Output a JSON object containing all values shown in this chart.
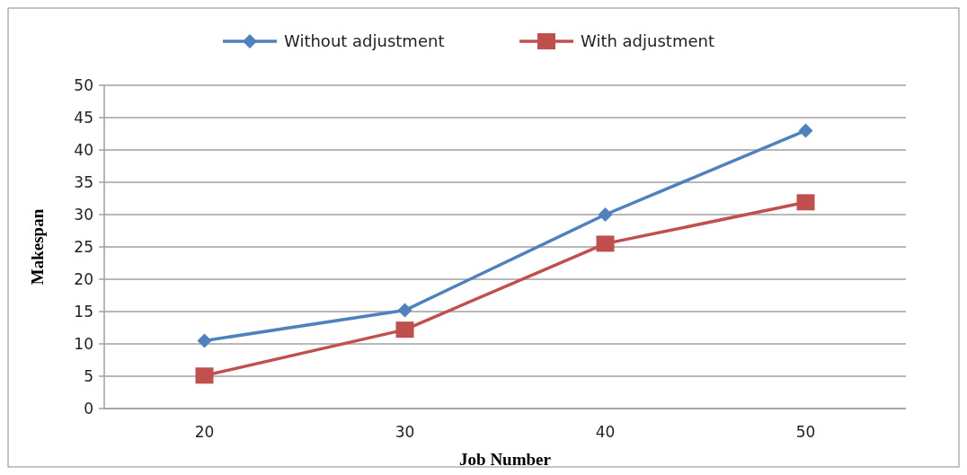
{
  "chart_data": {
    "type": "line",
    "xlabel": "Job Number",
    "ylabel": "Makespan",
    "categories": [
      "20",
      "30",
      "40",
      "50"
    ],
    "series": [
      {
        "name": "Without adjustment",
        "color": "#4f81bd",
        "marker": "diamond",
        "values": [
          10.5,
          15.2,
          30,
          43
        ]
      },
      {
        "name": "With adjustment",
        "color": "#c0504d",
        "marker": "square",
        "values": [
          5.1,
          12.2,
          25.5,
          31.9
        ]
      }
    ],
    "ylim": [
      0,
      50
    ],
    "yticks": [
      0,
      5,
      10,
      15,
      20,
      25,
      30,
      35,
      40,
      45,
      50
    ],
    "grid": "y",
    "legend": "top"
  }
}
